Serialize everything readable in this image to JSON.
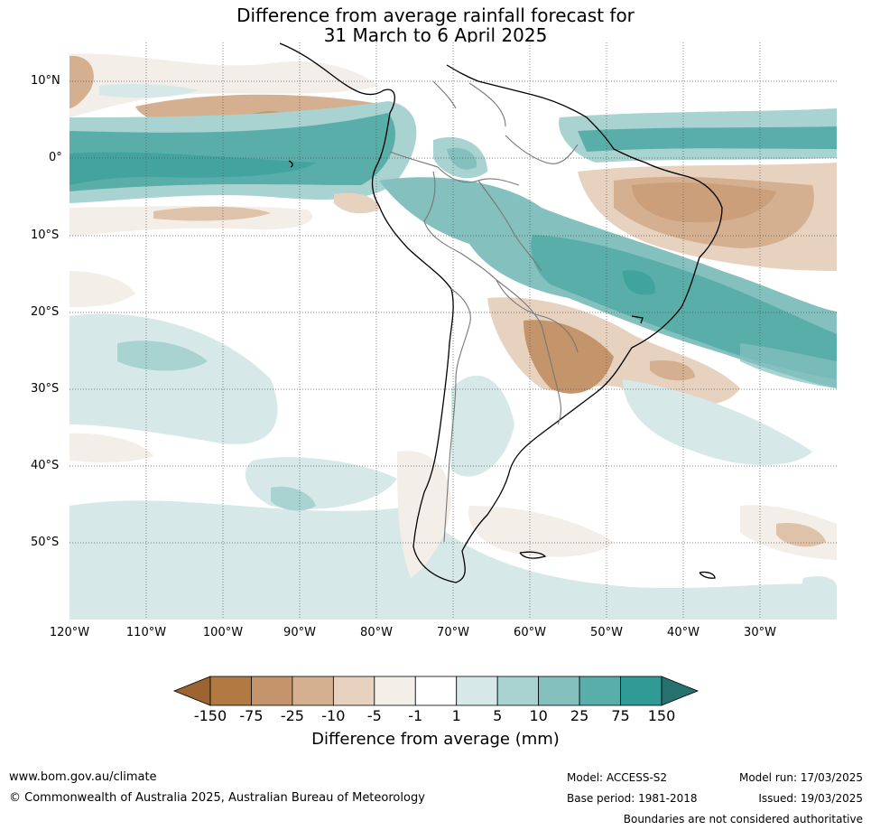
{
  "title_line1": "Difference from average rainfall forecast for",
  "title_line2": "31 March to 6 April 2025",
  "lat_labels": [
    "10°N",
    "0°",
    "10°S",
    "20°S",
    "30°S",
    "40°S",
    "50°S"
  ],
  "lon_labels": [
    "120°W",
    "110°W",
    "100°W",
    "90°W",
    "80°W",
    "70°W",
    "60°W",
    "50°W",
    "40°W",
    "30°W"
  ],
  "colorbar": {
    "title": "Difference from average (mm)",
    "ticks": [
      "-150",
      "-75",
      "-25",
      "-10",
      "-5",
      "-1",
      "1",
      "5",
      "10",
      "25",
      "75",
      "150"
    ],
    "colors": [
      "#9c6430",
      "#b07a42",
      "#c4946a",
      "#d4b090",
      "#e6d2bf",
      "#f3eee8",
      "#ffffff",
      "#d6e9e8",
      "#a9d3d1",
      "#84c0bd",
      "#5aaeaa",
      "#309b96",
      "#26716e"
    ]
  },
  "footer": {
    "url": "www.bom.gov.au/climate",
    "copyright": "© Commonwealth of Australia 2025, Australian Bureau of Meteorology",
    "model": "Model: ACCESS-S2",
    "base_period": "Base period: 1981-2018",
    "model_run": "Model run: 17/03/2025",
    "issued": "Issued: 19/03/2025",
    "disclaimer": "Boundaries are not considered authoritative"
  }
}
